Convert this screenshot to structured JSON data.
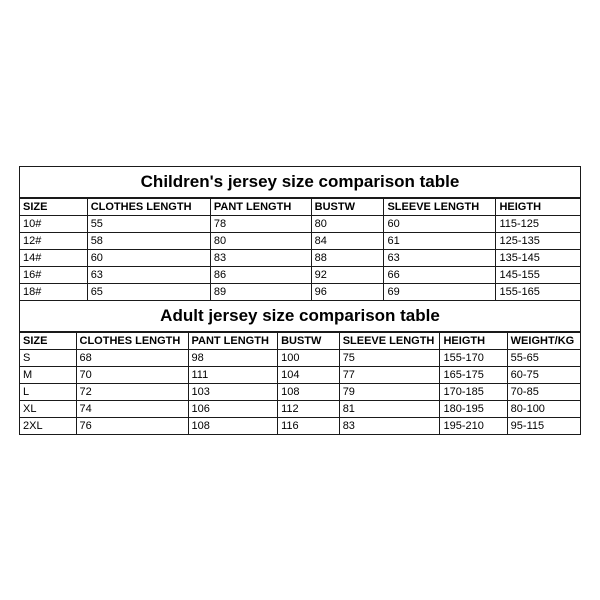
{
  "children_table": {
    "title": "Children's jersey size comparison table",
    "columns": [
      "SIZE",
      "CLOTHES LENGTH",
      "PANT LENGTH",
      "BUSTW",
      "SLEEVE LENGTH",
      "HEIGTH"
    ],
    "col_widths": [
      "12%",
      "22%",
      "18%",
      "13%",
      "20%",
      "15%"
    ],
    "rows": [
      [
        "10#",
        "55",
        "78",
        "80",
        "60",
        "115-125"
      ],
      [
        "12#",
        "58",
        "80",
        "84",
        "61",
        "125-135"
      ],
      [
        "14#",
        "60",
        "83",
        "88",
        "63",
        "135-145"
      ],
      [
        "16#",
        "63",
        "86",
        "92",
        "66",
        "145-155"
      ],
      [
        "18#",
        "65",
        "89",
        "96",
        "69",
        "155-165"
      ]
    ]
  },
  "adult_table": {
    "title": "Adult jersey size comparison table",
    "columns": [
      "SIZE",
      "CLOTHES LENGTH",
      "PANT LENGTH",
      "BUSTW",
      "SLEEVE LENGTH",
      "HEIGTH",
      "WEIGHT/KG"
    ],
    "col_widths": [
      "10%",
      "20%",
      "16%",
      "11%",
      "18%",
      "12%",
      "13%"
    ],
    "rows": [
      [
        "S",
        "68",
        "98",
        "100",
        "75",
        "155-170",
        "55-65"
      ],
      [
        "M",
        "70",
        "111",
        "104",
        "77",
        "165-175",
        "60-75"
      ],
      [
        "L",
        "72",
        "103",
        "108",
        "79",
        "170-185",
        "70-85"
      ],
      [
        "XL",
        "74",
        "106",
        "112",
        "81",
        "180-195",
        "80-100"
      ],
      [
        "2XL",
        "76",
        "108",
        "116",
        "83",
        "195-210",
        "95-115"
      ]
    ]
  },
  "styling": {
    "border_color": "#1a1a1a",
    "background_color": "#ffffff",
    "title_fontsize": 17,
    "cell_fontsize": 11,
    "font_family": "Arial"
  }
}
